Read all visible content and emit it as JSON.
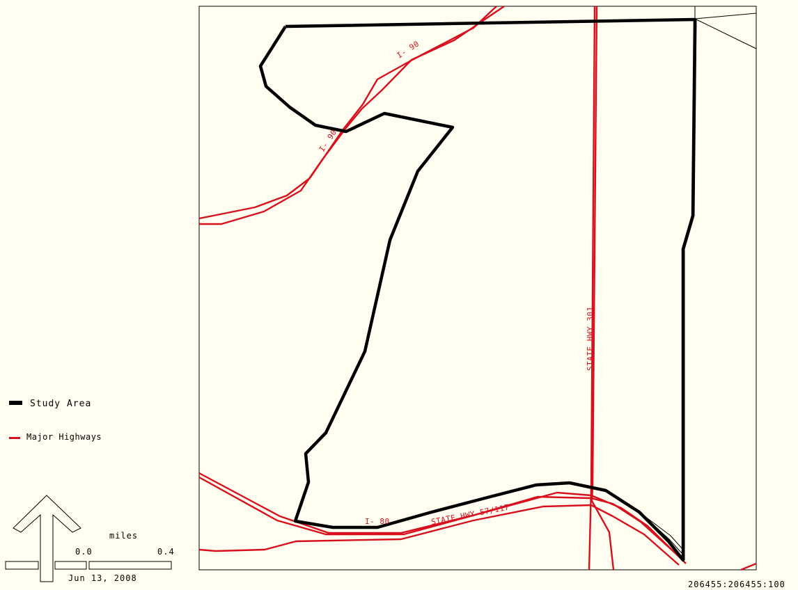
{
  "legend": {
    "study_area_label": "Study Area",
    "highways_label": "Major Highways"
  },
  "colors": {
    "background": "#fffef0",
    "study_area": "#000000",
    "highways": "#d8101e"
  },
  "highway_labels": {
    "i90_top": "I- 90",
    "i90_mid": "I- 90",
    "state_hwy_301": "STATE HWY 301",
    "i80": "I- 80",
    "state_hwy_57": "STATE HWY 57/117"
  },
  "scale_bar": {
    "unit": "miles",
    "start": "0.0",
    "end": "0.4"
  },
  "date": "Jun 13, 2008",
  "map_id": "206455:206455:100",
  "north_arrow_icon": "north-arrow-icon"
}
